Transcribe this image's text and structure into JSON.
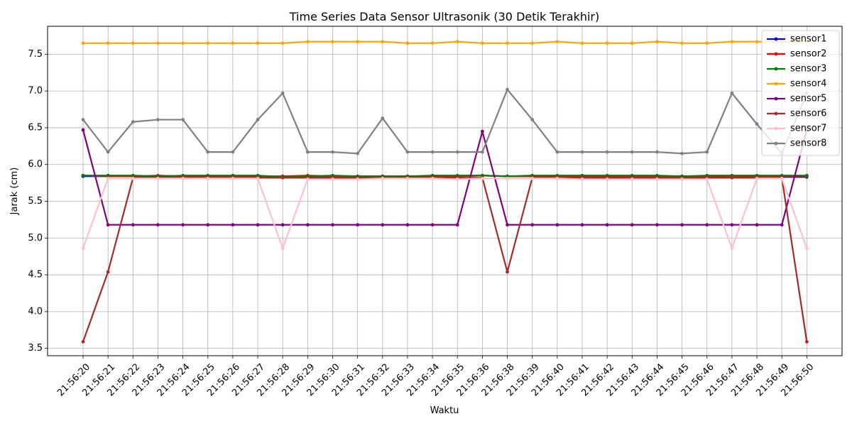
{
  "chart_data": {
    "type": "line",
    "title": "Time Series Data Sensor Ultrasonik (30 Detik Terakhir)",
    "xlabel": "Waktu",
    "ylabel": "Jarak (cm)",
    "ylim": [
      3.4,
      7.88
    ],
    "yticks": [
      "3.5",
      "4.0",
      "4.5",
      "5.0",
      "5.5",
      "6.0",
      "6.5",
      "7.0",
      "7.5"
    ],
    "grid": true,
    "legend_position": "top-right",
    "categories": [
      "21:56:20",
      "21:56:21",
      "21:56:22",
      "21:56:23",
      "21:56:24",
      "21:56:25",
      "21:56:26",
      "21:56:27",
      "21:56:28",
      "21:56:29",
      "21:56:30",
      "21:56:31",
      "21:56:32",
      "21:56:33",
      "21:56:34",
      "21:56:35",
      "21:56:36",
      "21:56:38",
      "21:56:39",
      "21:56:40",
      "21:56:41",
      "21:56:42",
      "21:56:43",
      "21:56:44",
      "21:56:45",
      "21:56:46",
      "21:56:47",
      "21:56:48",
      "21:56:49",
      "21:56:50"
    ],
    "series": [
      {
        "name": "sensor1",
        "color": "#0000ff",
        "values": [
          5.84,
          5.84,
          5.84,
          5.84,
          5.84,
          5.84,
          5.84,
          5.84,
          5.84,
          5.84,
          5.84,
          5.84,
          5.84,
          5.84,
          5.84,
          5.84,
          5.85,
          5.84,
          5.84,
          5.84,
          5.84,
          5.84,
          5.84,
          5.84,
          5.84,
          5.84,
          5.83,
          5.83,
          5.83,
          5.83
        ]
      },
      {
        "name": "sensor2",
        "color": "#ff0000",
        "values": [
          5.85,
          5.84,
          5.84,
          5.85,
          5.84,
          5.84,
          5.84,
          5.84,
          5.84,
          5.85,
          5.84,
          5.84,
          5.84,
          5.84,
          5.84,
          5.84,
          5.85,
          5.84,
          5.84,
          5.84,
          5.84,
          5.84,
          5.84,
          5.84,
          5.84,
          5.84,
          5.84,
          5.84,
          5.84,
          5.84
        ]
      },
      {
        "name": "sensor3",
        "color": "#008000",
        "values": [
          5.85,
          5.85,
          5.85,
          5.84,
          5.85,
          5.85,
          5.85,
          5.85,
          5.83,
          5.84,
          5.85,
          5.84,
          5.84,
          5.84,
          5.85,
          5.85,
          5.85,
          5.84,
          5.85,
          5.85,
          5.85,
          5.85,
          5.85,
          5.85,
          5.84,
          5.85,
          5.85,
          5.85,
          5.85,
          5.85
        ]
      },
      {
        "name": "sensor4",
        "color": "#ffa500",
        "values": [
          7.65,
          7.65,
          7.65,
          7.65,
          7.65,
          7.65,
          7.65,
          7.65,
          7.65,
          7.67,
          7.67,
          7.67,
          7.67,
          7.65,
          7.65,
          7.67,
          7.65,
          7.65,
          7.65,
          7.67,
          7.65,
          7.65,
          7.65,
          7.67,
          7.65,
          7.65,
          7.67,
          7.67,
          7.67,
          7.67
        ]
      },
      {
        "name": "sensor5",
        "color": "#800080",
        "values": [
          6.47,
          5.18,
          5.18,
          5.18,
          5.18,
          5.18,
          5.18,
          5.18,
          5.18,
          5.18,
          5.18,
          5.18,
          5.18,
          5.18,
          5.18,
          5.18,
          6.45,
          5.18,
          5.18,
          5.18,
          5.18,
          5.18,
          5.18,
          5.18,
          5.18,
          5.18,
          5.18,
          5.18,
          5.18,
          6.47
        ]
      },
      {
        "name": "sensor6",
        "color": "#a52a2a",
        "values": [
          3.59,
          4.54,
          5.82,
          5.82,
          5.82,
          5.82,
          5.82,
          5.82,
          5.82,
          5.82,
          5.82,
          5.82,
          5.82,
          5.82,
          5.82,
          5.82,
          5.82,
          4.54,
          5.82,
          5.82,
          5.82,
          5.82,
          5.82,
          5.82,
          5.82,
          5.82,
          5.82,
          5.82,
          5.82,
          3.59
        ]
      },
      {
        "name": "sensor7",
        "color": "#ffc0cb",
        "values": [
          4.86,
          5.81,
          5.81,
          5.81,
          5.81,
          5.81,
          5.81,
          5.81,
          4.86,
          5.8,
          5.8,
          5.8,
          5.81,
          5.81,
          5.81,
          5.8,
          5.81,
          5.81,
          5.81,
          5.81,
          5.8,
          5.8,
          5.8,
          5.8,
          5.8,
          5.8,
          4.86,
          5.81,
          5.81,
          4.86
        ]
      },
      {
        "name": "sensor8",
        "color": "#808080",
        "values": [
          6.61,
          6.17,
          6.58,
          6.61,
          6.61,
          6.17,
          6.17,
          6.61,
          6.97,
          6.17,
          6.17,
          6.15,
          6.63,
          6.17,
          6.17,
          6.17,
          6.17,
          7.02,
          6.61,
          6.17,
          6.17,
          6.17,
          6.17,
          6.17,
          6.15,
          6.17,
          6.97,
          6.55,
          6.15,
          6.97
        ]
      }
    ]
  }
}
